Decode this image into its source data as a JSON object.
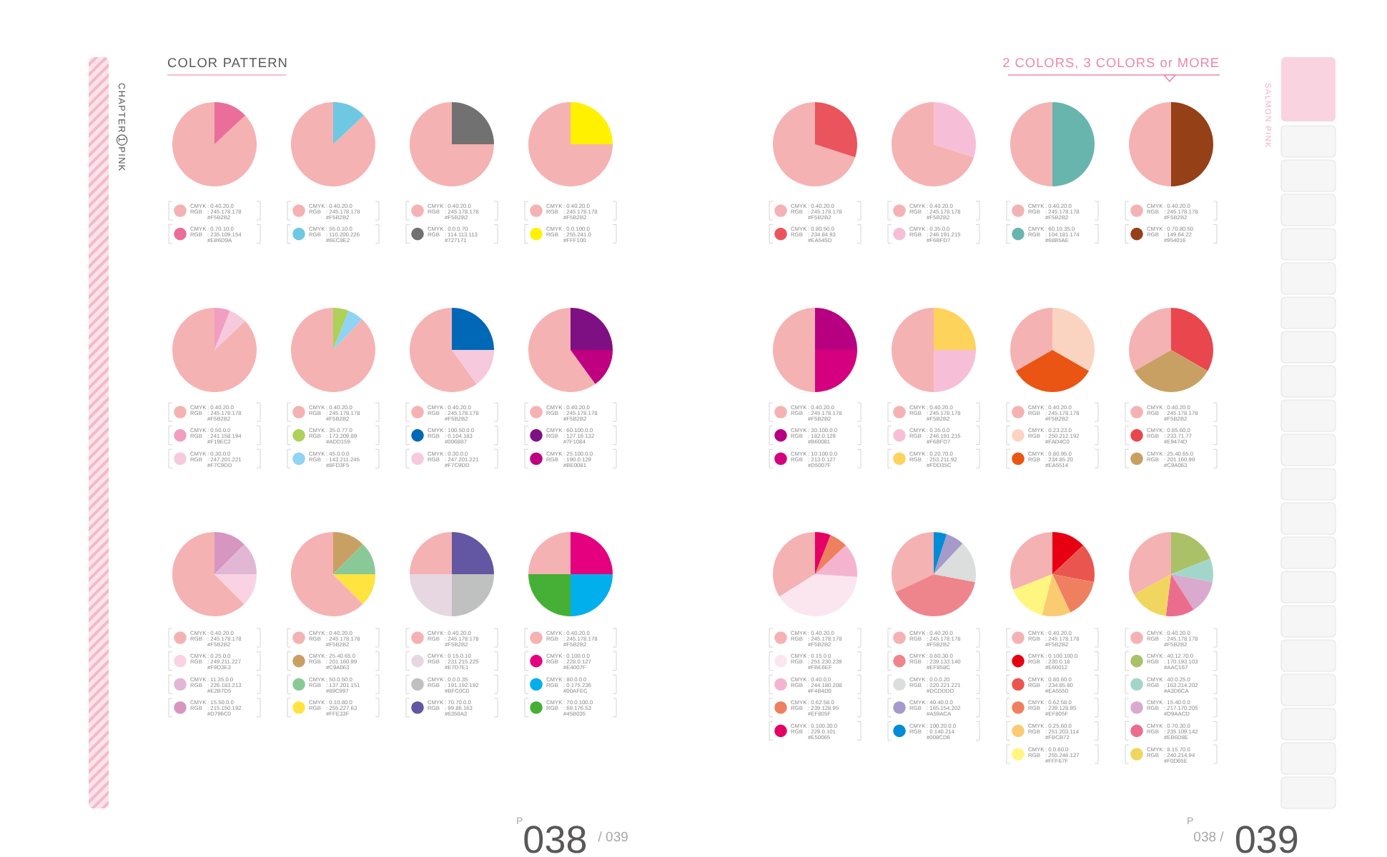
{
  "chart_data": [
    {
      "type": "pie",
      "title": "COLOR PATTERN",
      "annotations": [
        "CHAPTER 1 PINK",
        "$^{P}$038 / 039"
      ],
      "legend": "bottom",
      "categories": [
        "CMYK : 0.40.20.0\nRGB : 245.178.178\n#F5B2B2",
        "CMYK : 0.70.10.0\nRGB : 235.109.154\n#EB6D9A"
      ],
      "values": [
        87,
        13
      ],
      "colors": [
        "#F5B2B2",
        "#EB6D9A"
      ]
    },
    {
      "type": "pie",
      "legend": "bottom",
      "categories": [
        "CMYK : 0.40.20.0\nRGB : 245.178.178\n#F5B2B2",
        "CMYK : 55.0.10.0\nRGB : 110.200.226\n#6EC8E2"
      ],
      "values": [
        87,
        13
      ],
      "colors": [
        "#F5B2B2",
        "#6EC8E2"
      ]
    },
    {
      "type": "pie",
      "legend": "bottom",
      "categories": [
        "CMYK : 0.40.20.0\nRGB : 245.178.178\n#F5B2B2",
        "CMYK : 0.0.0.70\nRGB : 114.113.113\n#727171"
      ],
      "values": [
        75,
        25
      ],
      "colors": [
        "#F5B2B2",
        "#727171"
      ]
    },
    {
      "type": "pie",
      "legend": "bottom",
      "categories": [
        "CMYK : 0.40.20.0\nRGB : 245.178.178\n#F5B2B2",
        "CMYK : 0.0.100.0\nRGB : 255.241.0\n#FFF100"
      ],
      "values": [
        75,
        25
      ],
      "colors": [
        "#F5B2B2",
        "#FFF100"
      ]
    },
    {
      "type": "pie",
      "legend": "bottom",
      "categories": [
        "CMYK : 0.40.20.0\nRGB : 245.178.178\n#F5B2B2",
        "CMYK : 0.50.0.0\nRGB : 241.158.194\n#F19EC2",
        "CMYK : 0.30.0.0\nRGB : 247.201.221\n#F7C9DD"
      ],
      "values": [
        87,
        6,
        7
      ],
      "colors": [
        "#F5B2B2",
        "#F19EC2",
        "#F7C9DD"
      ]
    },
    {
      "type": "pie",
      "legend": "bottom",
      "categories": [
        "CMYK : 0.40.20.0\nRGB : 245.178.178\n#F5B2B2",
        "CMYK : 35.0.77.0\nRGB : 173.209.89\n#ADD159",
        "CMYK : 45.0.0.0\nRGB : 143.211.245\n#8FD3F5"
      ],
      "values": [
        88,
        6,
        6
      ],
      "colors": [
        "#F5B2B2",
        "#ADD159",
        "#8FD3F5"
      ]
    },
    {
      "type": "pie",
      "legend": "bottom",
      "categories": [
        "CMYK : 0.40.20.0\nRGB : 245.178.178\n#F5B2B2",
        "CMYK : 100.50.0.0\nRGB : 0.104.183\n#0068B7",
        "CMYK : 0.30.0.0\nRGB : 247.201.221\n#F7C9DD"
      ],
      "values": [
        60,
        25,
        15
      ],
      "colors": [
        "#F5B2B2",
        "#0068B7",
        "#F7C9DD"
      ]
    },
    {
      "type": "pie",
      "legend": "bottom",
      "categories": [
        "CMYK : 0.40.20.0\nRGB : 245.178.178\n#F5B2B2",
        "CMYK : 60.100.0.0\nRGB : 127.16.132\n#7F1084",
        "CMYK : 25.100.0.0\nRGB : 190.0.129\n#BE0081"
      ],
      "values": [
        60,
        25,
        15
      ],
      "colors": [
        "#F5B2B2",
        "#7F1084",
        "#BE0081"
      ]
    },
    {
      "type": "pie",
      "legend": "bottom",
      "categories": [
        "CMYK : 0.40.20.0\nRGB : 245.178.178\n#F5B2B2",
        "CMYK : 0.25.0.0\nRGB : 249.211.227\n#F9D3E3",
        "CMYK : 11.35.0.0\nRGB : 226.183.213\n#E2B7D5",
        "CMYK : 15.50.0.0\nRGB : 215.150.192\n#D796C0"
      ],
      "values": [
        62.5,
        12.5,
        12.5,
        12.5
      ],
      "colors": [
        "#F5B2B2",
        "#F9D3E3",
        "#E2B7D5",
        "#D796C0"
      ]
    },
    {
      "type": "pie",
      "legend": "bottom",
      "categories": [
        "CMYK : 0.40.20.0\nRGB : 245.178.178\n#F5B2B2",
        "CMYK : 25.40.65.0\nRGB : 201.160.99\n#C9A063",
        "CMYK : 50.0.50.0\nRGB : 137.201.151\n#89C997",
        "CMYK : 0.10.80.0\nRGB : 255.227.63\n#FFE33F"
      ],
      "values": [
        62.5,
        12.5,
        12.5,
        12.5
      ],
      "colors": [
        "#F5B2B2",
        "#C9A063",
        "#89C997",
        "#FFE33F"
      ]
    },
    {
      "type": "pie",
      "legend": "bottom",
      "categories": [
        "CMYK : 0.40.20.0\nRGB : 245.178.178\n#F5B2B2",
        "CMYK : 0.15.0.10\nRGB : 231.215.225\n#E7D7E1",
        "CMYK : 0.0.0.35\nRGB : 191.192.192\n#BFC0C0",
        "CMYK : 70.70.0.0\nRGB : 99.86.163\n#6356A3"
      ],
      "values": [
        25,
        25,
        25,
        25
      ],
      "colors": [
        "#F5B2B2",
        "#E7D7E1",
        "#BFC0C0",
        "#6356A3"
      ]
    },
    {
      "type": "pie",
      "legend": "bottom",
      "categories": [
        "CMYK : 0.40.20.0\nRGB : 245.178.178\n#F5B2B2",
        "CMYK : 0.100.0.0\nRGB : 228.0.127\n#E4007F",
        "CMYK : 80.0.0.0\nRGB : 0.175.236\n#00AFEC",
        "CMYK : 70.0.100.0\nRGB : 69.176.53\n#45B035"
      ],
      "values": [
        25,
        25,
        25,
        25
      ],
      "colors": [
        "#F5B2B2",
        "#E4007F",
        "#00AFEC",
        "#45B035"
      ]
    },
    {
      "type": "pie",
      "title": "2 COLORS, 3 COLORS or MORE",
      "annotations": [
        "SALMON PINK",
        "$^{P}$038 / 039"
      ],
      "legend": "bottom",
      "categories": [
        "CMYK : 0.40.20.0\nRGB : 245.178.178\n#F5B2B2",
        "CMYK : 0.80.50.0\nRGB : 234.84.93\n#EA545D"
      ],
      "values": [
        70,
        30
      ],
      "colors": [
        "#F5B2B2",
        "#EA545D"
      ]
    },
    {
      "type": "pie",
      "legend": "bottom",
      "categories": [
        "CMYK : 0.40.20.0\nRGB : 245.178.178\n#F5B2B2",
        "CMYK : 0.35.0.0\nRGB : 246.191.215\n#F6BFD7"
      ],
      "values": [
        70,
        30
      ],
      "colors": [
        "#F5B2B2",
        "#F6BFD7"
      ]
    },
    {
      "type": "pie",
      "legend": "bottom",
      "categories": [
        "CMYK : 0.40.20.0\nRGB : 245.178.178\n#F5B2B2",
        "CMYK : 60.10.35.0\nRGB : 104.181.174\n#68B5AE"
      ],
      "values": [
        50,
        50
      ],
      "colors": [
        "#F5B2B2",
        "#68B5AE"
      ]
    },
    {
      "type": "pie",
      "legend": "bottom",
      "categories": [
        "CMYK : 0.40.20.0\nRGB : 245.178.178\n#F5B2B2",
        "CMYK : 0.70.80.50\nRGB : 149.64.22\n#954016"
      ],
      "values": [
        50,
        50
      ],
      "colors": [
        "#F5B2B2",
        "#954016"
      ]
    },
    {
      "type": "pie",
      "legend": "bottom",
      "categories": [
        "CMYK : 0.40.20.0\nRGB : 245.178.178\n#F5B2B2",
        "CMYK : 30.100.0.0\nRGB : 182.0.129\n#B60081",
        "CMYK : 10.100.0.0\nRGB : 213.0.127\n#D5007F"
      ],
      "values": [
        50,
        25,
        25
      ],
      "colors": [
        "#F5B2B2",
        "#B60081",
        "#D5007F"
      ]
    },
    {
      "type": "pie",
      "legend": "bottom",
      "categories": [
        "CMYK : 0.40.20.0\nRGB : 245.178.178\n#F5B2B2",
        "CMYK : 0.35.0.0\nRGB : 246.191.215\n#F6BFD7",
        "CMYK : 0.20.70.0\nRGB : 253.211.92\n#FDD35C"
      ],
      "values": [
        50,
        25,
        25
      ],
      "colors": [
        "#F5B2B2",
        "#F6BFD7",
        "#FDD35C"
      ]
    },
    {
      "type": "pie",
      "legend": "bottom",
      "categories": [
        "CMYK : 0.40.20.0\nRGB : 245.178.178\n#F5B2B2",
        "CMYK : 0.23.23.0\nRGB : 250.212.192\n#FAD4C0",
        "CMYK : 0.80.95.0\nRGB : 234.85.20\n#EA5514"
      ],
      "values": [
        33.3,
        33.3,
        33.4
      ],
      "colors": [
        "#F5B2B2",
        "#FAD4C0",
        "#EA5514"
      ]
    },
    {
      "type": "pie",
      "legend": "bottom",
      "categories": [
        "CMYK : 0.40.20.0\nRGB : 245.178.178\n#F5B2B2",
        "CMYK : 0.85.60.0\nRGB : 233.71.77\n#E9474D",
        "CMYK : 25.40.65.0\nRGB : 201.160.99\n#C9A063"
      ],
      "values": [
        33.3,
        33.3,
        33.4
      ],
      "colors": [
        "#F5B2B2",
        "#E9474D",
        "#C9A063"
      ]
    },
    {
      "type": "pie",
      "legend": "bottom",
      "categories": [
        "CMYK : 0.40.20.0\nRGB : 245.178.178\n#F5B2B2",
        "CMYK : 0.15.0.0\nRGB : 251.230.239\n#FBE6EF",
        "CMYK : 0.40.0.0\nRGB : 244.180.208\n#F4B4D0",
        "CMYK : 0.62.58.0\nRGB : 239.128.95\n#EF805F",
        "CMYK : 0.100.30.0\nRGB : 229.0.101\n#E50065"
      ],
      "values": [
        34,
        40,
        13,
        7,
        6
      ],
      "colors": [
        "#F5B2B2",
        "#FBE6EF",
        "#F4B4D0",
        "#EF805F",
        "#E50065"
      ]
    },
    {
      "type": "pie",
      "legend": "bottom",
      "categories": [
        "CMYK : 0.40.20.0\nRGB : 245.178.178\n#F5B2B2",
        "CMYK : 0.60.30.0\nRGB : 239.133.140\n#EF858C",
        "CMYK : 0.0.0.20\nRGB : 220.221.221\n#DCDDDD",
        "CMYK : 40.40.0.0\nRGB : 165.154.202\n#A59ACA",
        "CMYK : 100.20.0.0\nRGB : 0.140.214\n#008CD6"
      ],
      "values": [
        32,
        40,
        16,
        7,
        5
      ],
      "colors": [
        "#F5B2B2",
        "#EF858C",
        "#DCDDDD",
        "#A59ACA",
        "#008CD6"
      ]
    },
    {
      "type": "pie",
      "legend": "bottom",
      "categories": [
        "CMYK : 0.40.20.0\nRGB : 245.178.178\n#F5B2B2",
        "CMYK : 0.100.100.0\nRGB : 230.0.18\n#E60012",
        "CMYK : 0.80.60.0\nRGB : 234.85.80\n#EA5550",
        "CMYK : 0.62.58.0\nRGB : 239.128.95\n#EF805F",
        "CMYK : 0.25.60.0\nRGB : 251.203.114\n#FBCB72",
        "CMYK : 0.0.60.0\nRGB : 255.246.127\n#FFF67F"
      ],
      "values": [
        31,
        13,
        15,
        15,
        11,
        15
      ],
      "colors": [
        "#F5B2B2",
        "#E60012",
        "#EA5550",
        "#EF805F",
        "#FBCB72",
        "#FFF67F"
      ]
    },
    {
      "type": "pie",
      "legend": "bottom",
      "categories": [
        "CMYK : 0.40.20.0\nRGB : 245.178.178\n#F5B2B2",
        "CMYK : 40.12.70.0\nRGB : 170.193.103\n#AAC167",
        "CMYK : 40.0.25.0\nRGB : 163.214.202\n#A3D6CA",
        "CMYK : 15.40.0.0\nRGB : 217.170.205\n#D9AACD",
        "CMYK : 0.70.30.0\nRGB : 235.109.142\n#EB6D8E",
        "CMYK : 8.15.70.0\nRGB : 240.214.94\n#F0D65E"
      ],
      "values": [
        33,
        19,
        9,
        13,
        11,
        15
      ],
      "colors": [
        "#F5B2B2",
        "#AAC167",
        "#A3D6CA",
        "#D9AACD",
        "#EB6D8E",
        "#F0D65E"
      ]
    }
  ]
}
